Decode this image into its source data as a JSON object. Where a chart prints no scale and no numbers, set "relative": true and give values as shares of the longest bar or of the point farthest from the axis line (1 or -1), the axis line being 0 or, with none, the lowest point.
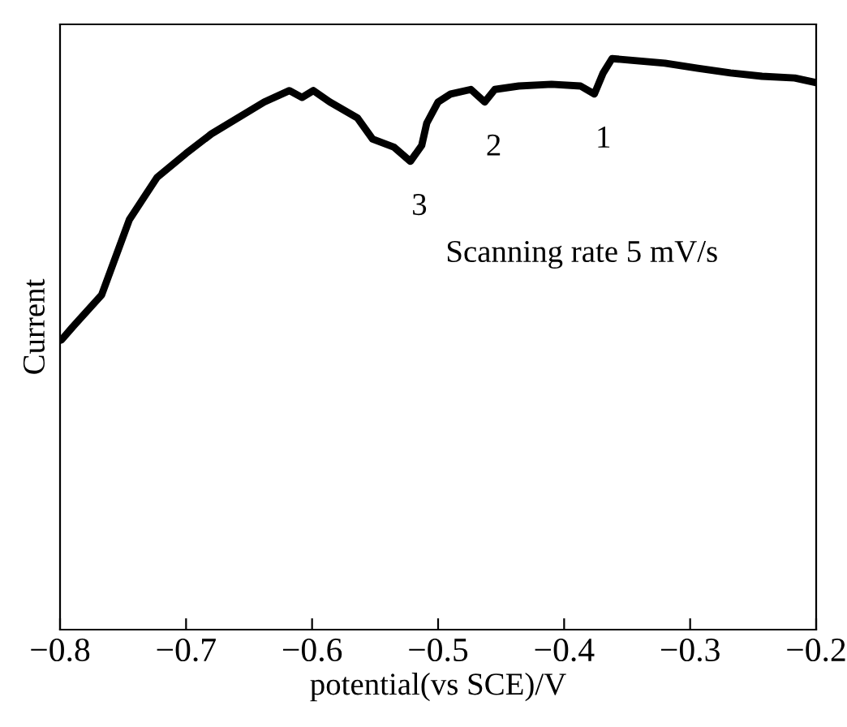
{
  "chart_data": {
    "type": "line",
    "relative": true,
    "xlabel": "potential(vs SCE)/V",
    "ylabel": "Current",
    "tick_labels": "x",
    "xlim": [
      -0.8,
      -0.2
    ],
    "xticks": [
      {
        "value": -0.8,
        "label": "−0.8"
      },
      {
        "value": -0.7,
        "label": "−0.7"
      },
      {
        "value": -0.6,
        "label": "−0.6"
      },
      {
        "value": -0.5,
        "label": "−0.5"
      },
      {
        "value": -0.4,
        "label": "−0.4"
      },
      {
        "value": -0.3,
        "label": "−0.3"
      },
      {
        "value": -0.2,
        "label": "−0.2"
      }
    ],
    "series": [
      {
        "color": "#000000",
        "x": [
          -0.799,
          -0.79,
          -0.767,
          -0.745,
          -0.723,
          -0.7,
          -0.68,
          -0.638,
          -0.618,
          -0.608,
          -0.599,
          -0.586,
          -0.564,
          -0.552,
          -0.535,
          -0.522,
          -0.513,
          -0.509,
          -0.5,
          -0.49,
          -0.474,
          -0.463,
          -0.455,
          -0.436,
          -0.41,
          -0.387,
          -0.376,
          -0.369,
          -0.362,
          -0.346,
          -0.32,
          -0.294,
          -0.268,
          -0.243,
          -0.217,
          -0.2
        ],
        "values": [
          0.507,
          0.53,
          0.586,
          0.718,
          0.792,
          0.834,
          0.868,
          0.924,
          0.944,
          0.932,
          0.944,
          0.924,
          0.896,
          0.859,
          0.845,
          0.82,
          0.848,
          0.887,
          0.924,
          0.938,
          0.946,
          0.924,
          0.946,
          0.952,
          0.955,
          0.952,
          0.938,
          0.975,
          1.0,
          0.997,
          0.992,
          0.983,
          0.975,
          0.969,
          0.966,
          0.958
        ]
      }
    ],
    "annotations": [
      {
        "text": "1",
        "x": -0.376,
        "y": 0.938
      },
      {
        "text": "2",
        "x": -0.463,
        "y": 0.924
      },
      {
        "text": "3",
        "x": -0.522,
        "y": 0.82
      },
      "Scanning rate 5 mV/s"
    ]
  }
}
